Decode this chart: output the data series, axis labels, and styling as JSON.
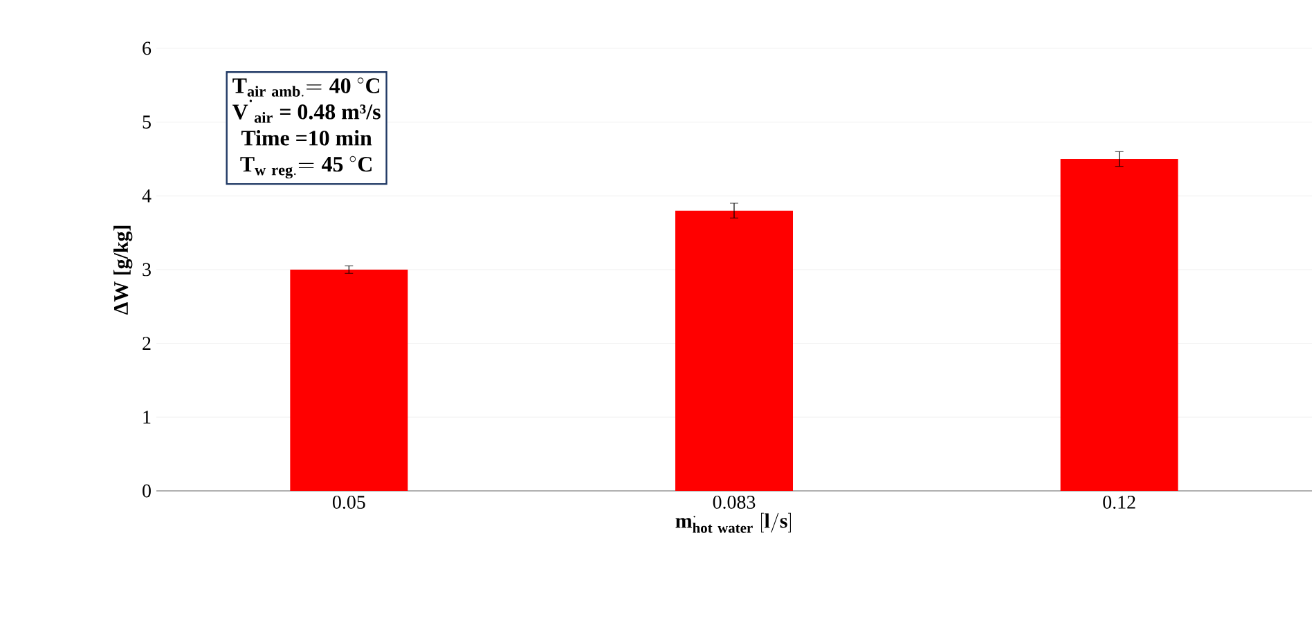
{
  "chart_data": {
    "type": "bar",
    "xlabel": "\\mathbf{m}^{\\cdot}_{\\mathbf{hot\\ water}}\\ \\mathbf{[l/s]}",
    "ylabel": "ΔW [g/kg]",
    "categories": [
      "0.05",
      "0.083",
      "0.12"
    ],
    "values": [
      3.0,
      3.8,
      4.5
    ],
    "errors": [
      0.05,
      0.1,
      0.1
    ],
    "color": "#ff0000",
    "ylim": [
      0,
      6
    ],
    "yticks": [
      0,
      1,
      2,
      3,
      4,
      5,
      6
    ],
    "grid": "y",
    "annotations": [
      "\\mathbf{T}_{\\mathbf{air\\ amb.}}\\mathbf{=40\\ {}^{\\circ}C}",
      "V$^{˙}$$_{air}$ = 0.48 m³/s",
      "Time =10 min",
      "\\mathbf{T}_{\\mathbf{w\\ reg.}}\\mathbf{=45\\ {}^{\\circ}C}"
    ]
  }
}
